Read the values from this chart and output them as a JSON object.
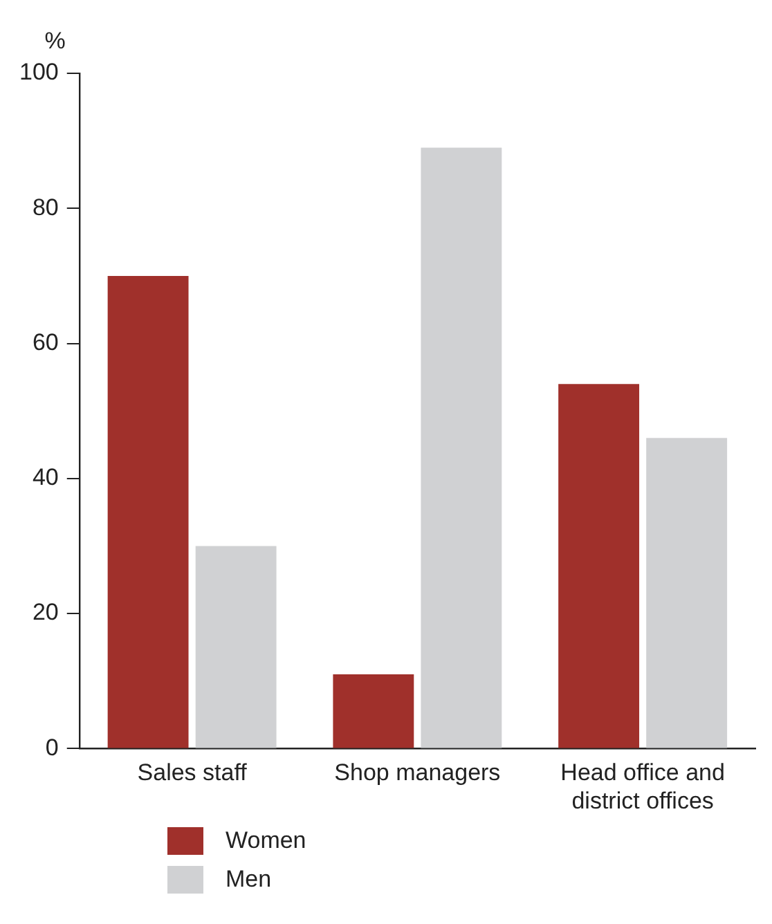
{
  "chart_data": {
    "type": "bar",
    "ylabel": "%",
    "categories": [
      "Sales staff",
      "Shop managers",
      "Head office and district offices"
    ],
    "series": [
      {
        "name": "Women",
        "color": "#a0302b",
        "values": [
          70,
          11,
          54
        ]
      },
      {
        "name": "Men",
        "color": "#d0d1d3",
        "values": [
          30,
          89,
          46
        ]
      }
    ],
    "ylim": [
      0,
      100
    ],
    "yticks": [
      0,
      20,
      40,
      60,
      80,
      100
    ],
    "grid": false,
    "legend": "bottom left"
  }
}
